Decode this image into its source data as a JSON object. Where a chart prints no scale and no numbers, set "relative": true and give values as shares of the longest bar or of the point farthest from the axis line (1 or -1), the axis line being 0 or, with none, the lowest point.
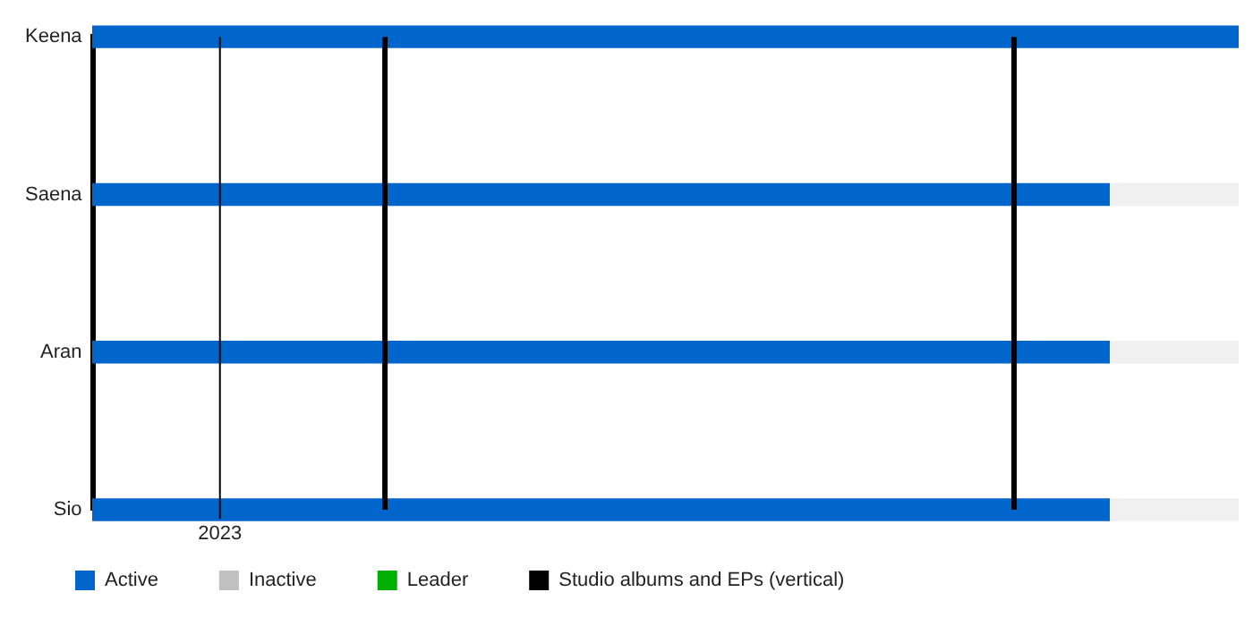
{
  "chart_data": {
    "type": "bar",
    "orientation": "horizontal",
    "stacked": true,
    "relative": true,
    "categories": [
      "Keena",
      "Saena",
      "Aran",
      "Sio"
    ],
    "series": [
      {
        "name": "Active",
        "color": "#0066cc",
        "values": [
          1,
          0.887,
          0.887,
          0.887
        ]
      },
      {
        "color": "#f0f0f0",
        "values": [
          null,
          0.113,
          0.113,
          0.113
        ]
      },
      {
        "name": "Inactive",
        "color": "#c0c0c0",
        "values": [
          null,
          null,
          null,
          null
        ]
      },
      {
        "name": "Leader",
        "color": "#00b000",
        "values": [
          null,
          null,
          null,
          null
        ]
      },
      {
        "name": "Studio albums and EPs (vertical)",
        "color": "#000000",
        "values": [
          null,
          null,
          null,
          null
        ]
      }
    ],
    "ref_lines": [
      {
        "axis": "x",
        "value": 0.111,
        "label": null,
        "color": "#000000",
        "line_style": "solid"
      },
      {
        "axis": "x",
        "value": 0.255,
        "label": null,
        "color": "#000000"
      },
      {
        "axis": "x",
        "value": 0.804,
        "label": null,
        "color": "#000000"
      }
    ],
    "annotations": [
      "2023"
    ],
    "legend": "bottom left",
    "grid": false
  }
}
